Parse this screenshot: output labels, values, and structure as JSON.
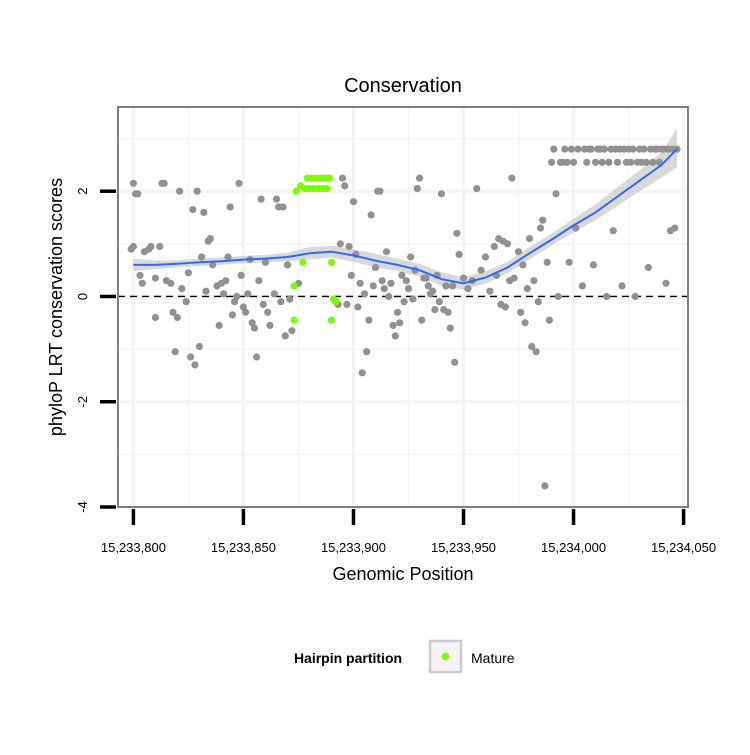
{
  "chart_data": {
    "type": "scatter",
    "title": "Conservation",
    "xlabel": "Genomic Position",
    "ylabel": "phyloP LRT conservation scores",
    "xlim": [
      15233793,
      15234052
    ],
    "ylim": [
      -4,
      3.6
    ],
    "x_ticks": [
      15233800,
      15233850,
      15233900,
      15233950,
      15234000,
      15234050
    ],
    "x_tick_labels": [
      "15,233,800",
      "15,233,850",
      "15,233,900",
      "15,233,950",
      "15,234,000",
      "15,234,050"
    ],
    "y_ticks": [
      -4,
      -2,
      0,
      2
    ],
    "y_tick_labels": [
      "-4",
      "-2",
      "0",
      "2"
    ],
    "grid": true,
    "reference_line": {
      "y": 0,
      "style": "dashed"
    },
    "legend": {
      "title": "Hairpin partition",
      "placement": "bottom",
      "entries": [
        {
          "label": "Mature",
          "color": "#7cfc00"
        }
      ]
    },
    "colors": {
      "other": "#919191",
      "mature": "#7cfc00",
      "smooth": "#3366ff",
      "ribbon": "#cccccc",
      "panel_border": "#7f7f7f",
      "grid": "#f4f4f4"
    },
    "series": [
      {
        "name": "Mature",
        "color": "#7cfc00",
        "points": [
          [
            15233873,
            0.2
          ],
          [
            15233873,
            -0.45
          ],
          [
            15233874,
            2.0
          ],
          [
            15233876,
            2.1
          ],
          [
            15233877,
            0.65
          ],
          [
            15233878,
            2.05
          ],
          [
            15233879,
            2.25
          ],
          [
            15233880,
            2.05
          ],
          [
            15233881,
            2.25
          ],
          [
            15233882,
            2.05
          ],
          [
            15233883,
            2.25
          ],
          [
            15233884,
            2.05
          ],
          [
            15233885,
            2.25
          ],
          [
            15233886,
            2.05
          ],
          [
            15233887,
            2.25
          ],
          [
            15233888,
            2.05
          ],
          [
            15233889,
            2.25
          ],
          [
            15233890,
            0.65
          ],
          [
            15233890,
            -0.45
          ],
          [
            15233891,
            -0.05
          ],
          [
            15233892,
            -0.1
          ]
        ]
      },
      {
        "color": "#919191",
        "points": [
          [
            15233799,
            0.9
          ],
          [
            15233800,
            2.15
          ],
          [
            15233800,
            0.95
          ],
          [
            15233801,
            1.95
          ],
          [
            15233802,
            1.95
          ],
          [
            15233803,
            0.4
          ],
          [
            15233804,
            0.25
          ],
          [
            15233805,
            0.85
          ],
          [
            15233807,
            0.9
          ],
          [
            15233808,
            0.95
          ],
          [
            15233810,
            0.35
          ],
          [
            15233810,
            -0.4
          ],
          [
            15233812,
            0.95
          ],
          [
            15233813,
            2.15
          ],
          [
            15233814,
            2.15
          ],
          [
            15233815,
            0.3
          ],
          [
            15233817,
            0.25
          ],
          [
            15233818,
            -0.3
          ],
          [
            15233819,
            -1.05
          ],
          [
            15233820,
            -0.4
          ],
          [
            15233821,
            2.0
          ],
          [
            15233822,
            0.15
          ],
          [
            15233824,
            -0.1
          ],
          [
            15233825,
            0.45
          ],
          [
            15233826,
            -1.15
          ],
          [
            15233827,
            1.65
          ],
          [
            15233828,
            -1.3
          ],
          [
            15233829,
            2.0
          ],
          [
            15233830,
            -0.95
          ],
          [
            15233831,
            0.75
          ],
          [
            15233832,
            1.6
          ],
          [
            15233833,
            0.1
          ],
          [
            15233834,
            1.05
          ],
          [
            15233835,
            1.1
          ],
          [
            15233836,
            0.6
          ],
          [
            15233838,
            0.2
          ],
          [
            15233839,
            -0.55
          ],
          [
            15233840,
            0.25
          ],
          [
            15233841,
            0.05
          ],
          [
            15233842,
            0.3
          ],
          [
            15233843,
            0.75
          ],
          [
            15233844,
            1.7
          ],
          [
            15233845,
            -0.35
          ],
          [
            15233846,
            -0.1
          ],
          [
            15233847,
            0.0
          ],
          [
            15233848,
            2.15
          ],
          [
            15233849,
            0.4
          ],
          [
            15233850,
            -0.2
          ],
          [
            15233851,
            -0.3
          ],
          [
            15233852,
            0.05
          ],
          [
            15233853,
            0.7
          ],
          [
            15233854,
            -0.5
          ],
          [
            15233855,
            -0.6
          ],
          [
            15233856,
            -1.15
          ],
          [
            15233857,
            0.3
          ],
          [
            15233858,
            1.85
          ],
          [
            15233859,
            -0.15
          ],
          [
            15233860,
            0.65
          ],
          [
            15233861,
            -0.3
          ],
          [
            15233862,
            -0.55
          ],
          [
            15233864,
            0.05
          ],
          [
            15233865,
            1.85
          ],
          [
            15233866,
            1.7
          ],
          [
            15233867,
            -0.1
          ],
          [
            15233868,
            1.7
          ],
          [
            15233869,
            -0.75
          ],
          [
            15233870,
            0.6
          ],
          [
            15233871,
            -0.05
          ],
          [
            15233872,
            -0.65
          ],
          [
            15233875,
            0.25
          ],
          [
            15233893,
            -0.15
          ],
          [
            15233894,
            1.0
          ],
          [
            15233895,
            2.25
          ],
          [
            15233896,
            2.1
          ],
          [
            15233897,
            -0.15
          ],
          [
            15233898,
            0.95
          ],
          [
            15233899,
            0.4
          ],
          [
            15233900,
            1.8
          ],
          [
            15233901,
            0.8
          ],
          [
            15233902,
            -0.2
          ],
          [
            15233903,
            0.25
          ],
          [
            15233904,
            -1.45
          ],
          [
            15233905,
            0.05
          ],
          [
            15233906,
            -1.05
          ],
          [
            15233907,
            -0.45
          ],
          [
            15233908,
            1.55
          ],
          [
            15233909,
            0.2
          ],
          [
            15233910,
            0.55
          ],
          [
            15233911,
            2.0
          ],
          [
            15233912,
            2.0
          ],
          [
            15233913,
            0.3
          ],
          [
            15233914,
            0.15
          ],
          [
            15233915,
            0.85
          ],
          [
            15233916,
            0.0
          ],
          [
            15233917,
            0.25
          ],
          [
            15233918,
            -0.55
          ],
          [
            15233919,
            -0.75
          ],
          [
            15233920,
            -0.3
          ],
          [
            15233921,
            -0.5
          ],
          [
            15233922,
            0.4
          ],
          [
            15233923,
            -0.1
          ],
          [
            15233924,
            0.3
          ],
          [
            15233925,
            0.15
          ],
          [
            15233926,
            0.75
          ],
          [
            15233927,
            -0.05
          ],
          [
            15233928,
            0.5
          ],
          [
            15233929,
            2.05
          ],
          [
            15233930,
            2.25
          ],
          [
            15233931,
            -0.45
          ],
          [
            15233932,
            0.35
          ],
          [
            15233933,
            0.35
          ],
          [
            15233934,
            0.2
          ],
          [
            15233935,
            0.05
          ],
          [
            15233936,
            0.1
          ],
          [
            15233937,
            -0.25
          ],
          [
            15233938,
            0.4
          ],
          [
            15233939,
            -0.1
          ],
          [
            15233940,
            1.95
          ],
          [
            15233941,
            -0.25
          ],
          [
            15233942,
            0.2
          ],
          [
            15233943,
            -0.3
          ],
          [
            15233944,
            -0.6
          ],
          [
            15233945,
            0.2
          ],
          [
            15233946,
            -1.25
          ],
          [
            15233947,
            1.2
          ],
          [
            15233948,
            0.8
          ],
          [
            15233950,
            0.35
          ],
          [
            15233952,
            0.15
          ],
          [
            15233954,
            0.3
          ],
          [
            15233956,
            2.05
          ],
          [
            15233958,
            0.5
          ],
          [
            15233960,
            0.75
          ],
          [
            15233962,
            0.1
          ],
          [
            15233964,
            0.95
          ],
          [
            15233965,
            0.4
          ],
          [
            15233966,
            1.1
          ],
          [
            15233967,
            -0.15
          ],
          [
            15233968,
            1.05
          ],
          [
            15233969,
            -0.2
          ],
          [
            15233970,
            1.0
          ],
          [
            15233971,
            0.3
          ],
          [
            15233972,
            2.25
          ],
          [
            15233973,
            0.35
          ],
          [
            15233975,
            0.85
          ],
          [
            15233976,
            -0.3
          ],
          [
            15233977,
            0.6
          ],
          [
            15233978,
            -0.5
          ],
          [
            15233979,
            0.15
          ],
          [
            15233980,
            1.1
          ],
          [
            15233981,
            -0.95
          ],
          [
            15233982,
            0.3
          ],
          [
            15233983,
            -1.05
          ],
          [
            15233984,
            -0.1
          ],
          [
            15233985,
            1.3
          ],
          [
            15233986,
            1.45
          ],
          [
            15233987,
            -3.6
          ],
          [
            15233988,
            0.65
          ],
          [
            15233989,
            -0.45
          ],
          [
            15233990,
            2.55
          ],
          [
            15233991,
            2.8
          ],
          [
            15233992,
            1.95
          ],
          [
            15233993,
            0.0
          ],
          [
            15233994,
            2.55
          ],
          [
            15233995,
            2.55
          ],
          [
            15233996,
            2.8
          ],
          [
            15233997,
            2.55
          ],
          [
            15233998,
            0.65
          ],
          [
            15233999,
            2.8
          ],
          [
            15234000,
            2.55
          ],
          [
            15234001,
            1.3
          ],
          [
            15234002,
            2.8
          ],
          [
            15234004,
            0.2
          ],
          [
            15234005,
            2.8
          ],
          [
            15234006,
            2.55
          ],
          [
            15234007,
            2.8
          ],
          [
            15234008,
            2.8
          ],
          [
            15234009,
            0.6
          ],
          [
            15234010,
            2.55
          ],
          [
            15234011,
            2.8
          ],
          [
            15234012,
            2.8
          ],
          [
            15234013,
            2.55
          ],
          [
            15234014,
            2.8
          ],
          [
            15234015,
            0.0
          ],
          [
            15234016,
            2.55
          ],
          [
            15234017,
            2.8
          ],
          [
            15234018,
            1.25
          ],
          [
            15234019,
            2.8
          ],
          [
            15234020,
            2.55
          ],
          [
            15234021,
            2.8
          ],
          [
            15234022,
            0.2
          ],
          [
            15234023,
            2.8
          ],
          [
            15234024,
            2.55
          ],
          [
            15234025,
            2.8
          ],
          [
            15234026,
            2.55
          ],
          [
            15234027,
            2.8
          ],
          [
            15234028,
            0.0
          ],
          [
            15234029,
            2.55
          ],
          [
            15234030,
            2.8
          ],
          [
            15234031,
            2.55
          ],
          [
            15234032,
            2.8
          ],
          [
            15234033,
            2.55
          ],
          [
            15234034,
            0.55
          ],
          [
            15234035,
            2.8
          ],
          [
            15234036,
            2.55
          ],
          [
            15234037,
            2.8
          ],
          [
            15234038,
            2.8
          ],
          [
            15234039,
            2.55
          ],
          [
            15234040,
            2.8
          ],
          [
            15234041,
            2.8
          ],
          [
            15234042,
            0.25
          ],
          [
            15234043,
            2.8
          ],
          [
            15234044,
            1.25
          ],
          [
            15234045,
            2.8
          ],
          [
            15234046,
            1.3
          ],
          [
            15234047,
            2.8
          ]
        ]
      }
    ],
    "smooth": {
      "x": [
        15233800,
        15233810,
        15233820,
        15233830,
        15233840,
        15233850,
        15233860,
        15233870,
        15233880,
        15233890,
        15233900,
        15233910,
        15233920,
        15233930,
        15233940,
        15233950,
        15233960,
        15233970,
        15233980,
        15233990,
        15234000,
        15234010,
        15234020,
        15234030,
        15234040,
        15234047
      ],
      "y": [
        0.6,
        0.6,
        0.62,
        0.65,
        0.67,
        0.7,
        0.72,
        0.75,
        0.82,
        0.85,
        0.78,
        0.68,
        0.6,
        0.5,
        0.33,
        0.25,
        0.36,
        0.55,
        0.82,
        1.08,
        1.35,
        1.6,
        1.9,
        2.2,
        2.5,
        2.8
      ],
      "lower": [
        0.48,
        0.52,
        0.55,
        0.58,
        0.6,
        0.63,
        0.65,
        0.67,
        0.7,
        0.74,
        0.66,
        0.55,
        0.48,
        0.38,
        0.2,
        0.13,
        0.24,
        0.44,
        0.7,
        0.97,
        1.22,
        1.45,
        1.72,
        2.0,
        2.26,
        2.45
      ],
      "upper": [
        0.72,
        0.68,
        0.69,
        0.72,
        0.74,
        0.77,
        0.79,
        0.83,
        0.94,
        0.96,
        0.9,
        0.81,
        0.72,
        0.62,
        0.46,
        0.37,
        0.48,
        0.66,
        0.94,
        1.19,
        1.48,
        1.75,
        2.08,
        2.4,
        2.74,
        3.2
      ]
    }
  }
}
